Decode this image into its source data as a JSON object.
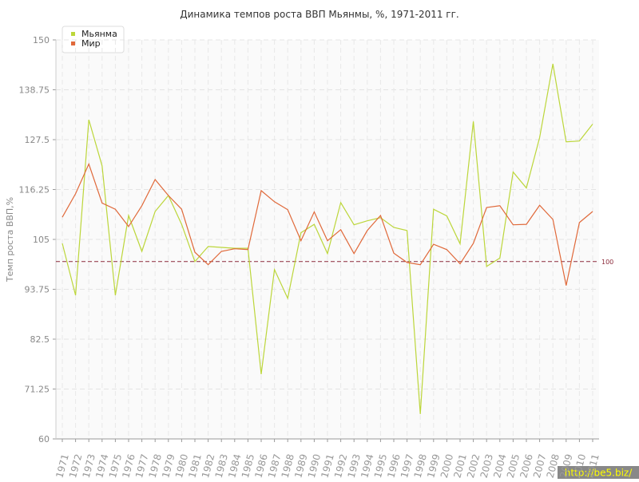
{
  "chart_data": {
    "type": "line",
    "title": "Динамика темпов роста ВВП Мьянмы, %, 1971-2011 гг.",
    "y_label": "Темп роста ВВП,%",
    "categories": [
      "1971",
      "1972",
      "1973",
      "1974",
      "1975",
      "1976",
      "1977",
      "1978",
      "1979",
      "1980",
      "1981",
      "1982",
      "1983",
      "1984",
      "1985",
      "1986",
      "1987",
      "1988",
      "1989",
      "1990",
      "1991",
      "1992",
      "1993",
      "1994",
      "1995",
      "1996",
      "1997",
      "1998",
      "1999",
      "2000",
      "2001",
      "2002",
      "2003",
      "2004",
      "2005",
      "2006",
      "2007",
      "2008",
      "2009",
      "2010",
      "2011"
    ],
    "series": [
      {
        "name": "Мьянма",
        "color": "#bcd63a",
        "values": [
          104.1,
          92.4,
          132,
          121.6,
          92.4,
          110.4,
          102.3,
          111.3,
          114.9,
          108.4,
          100,
          103.4,
          103.2,
          103,
          103,
          74.6,
          98.2,
          91.7,
          106.5,
          108.4,
          101.8,
          113.3,
          108.3,
          109.2,
          109.9,
          107.7,
          107,
          65.6,
          111.8,
          110.3,
          104,
          131.6,
          98.9,
          100.8,
          120.2,
          116.6,
          128,
          144.6,
          127,
          127.2,
          131
        ]
      },
      {
        "name": "Мир",
        "color": "#e0693a",
        "values": [
          110,
          115.3,
          122,
          113.2,
          111.8,
          107.9,
          112.6,
          118.5,
          114.9,
          111.8,
          102.1,
          99.3,
          102.3,
          102.9,
          102.7,
          116,
          113.5,
          111.7,
          104.7,
          111.2,
          104.7,
          107.2,
          101.8,
          107,
          110.4,
          101.9,
          99.8,
          99.3,
          103.9,
          102.7,
          99.5,
          104.1,
          112.2,
          112.6,
          108.3,
          108.4,
          112.7,
          109.5,
          94.6,
          108.8,
          111.3
        ]
      }
    ],
    "ylim": [
      60,
      150
    ],
    "yticks": [
      60,
      71.25,
      82.5,
      93.75,
      105,
      116.25,
      127.5,
      138.75,
      150
    ],
    "grid": true,
    "reference_line": 100,
    "reference_color": "#8b2a3a",
    "legend": "top-left",
    "watermark": "http://be5.biz/"
  }
}
